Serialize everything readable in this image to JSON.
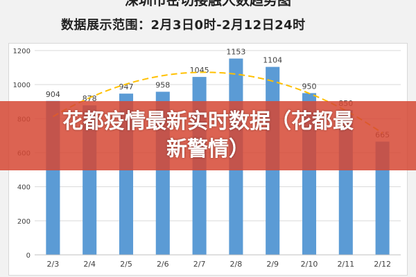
{
  "page": {
    "top_title": "深圳市密切接触人数趋势图",
    "subtitle": "数据展示范围：2月3日0时-2月12日24时",
    "banner_line1": "花都疫情最新实时数据（花都最",
    "banner_line2": "新警情）"
  },
  "chart_data": {
    "type": "bar",
    "categories": [
      "2/3",
      "2/4",
      "2/5",
      "2/6",
      "2/7",
      "2/8",
      "2/9",
      "2/10",
      "2/11",
      "2/12"
    ],
    "values": [
      904,
      878,
      947,
      958,
      1045,
      1153,
      1104,
      950,
      850,
      665
    ],
    "title": "",
    "xlabel": "",
    "ylabel": "",
    "ylim": [
      0,
      1200
    ],
    "yticks": [
      0,
      200,
      400,
      600,
      800,
      1000,
      1200
    ],
    "grid": true,
    "trendline": "polynomial-dashed",
    "colors": {
      "bar": "#5b9bd5",
      "trend": "#ffc000",
      "grid": "#d9d9d9",
      "label": "#404040"
    }
  }
}
